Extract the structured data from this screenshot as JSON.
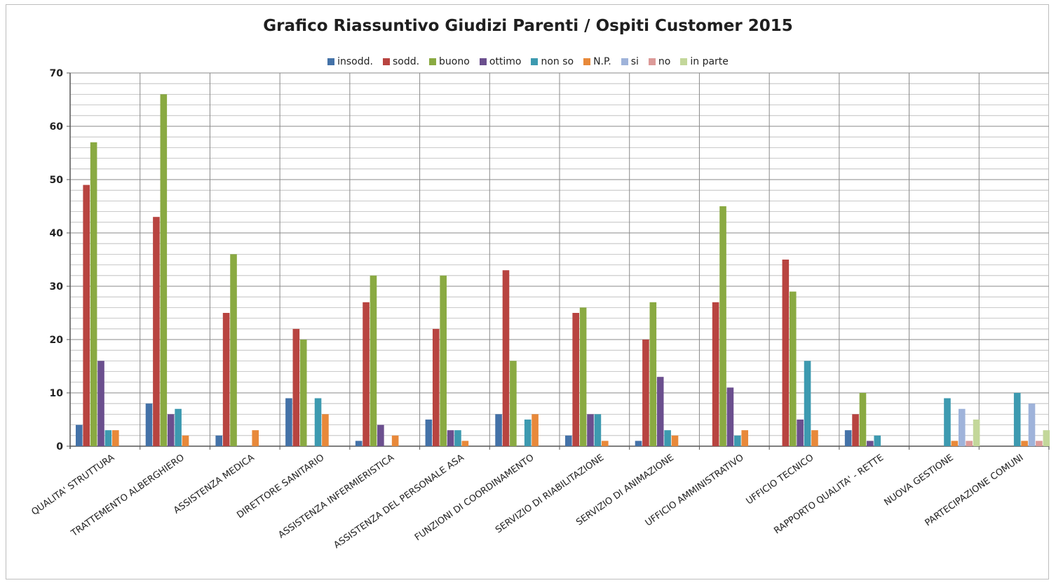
{
  "chart_data": {
    "type": "bar",
    "title": "Grafico Riassuntivo Giudizi Parenti / Ospiti Customer 2015",
    "xlabel": "",
    "ylabel": "",
    "ylim": [
      0,
      70
    ],
    "yticks": [
      0,
      10,
      20,
      30,
      40,
      50,
      60,
      70
    ],
    "grid": true,
    "legend_position": "top",
    "categories": [
      "QUALITA' STRUTTURA",
      "TRATTEMENTO ALBERGHIERO",
      "ASSISTENZA MEDICA",
      "DIRETTORE SANITARIO",
      "ASSISTENZA INFERMIERISTICA",
      "ASSISTENZA DEL PERSONALE ASA",
      "FUNZIONI DI COORDINAMENTO",
      "SERVIZIO DI RIABILITAZIONE",
      "SERVIZIO DI ANIMAZIONE",
      "UFFICIO AMMINISTRATIVO",
      "UFFICIO TECNICO",
      "RAPPORTO QUALITA' - RETTE",
      "NUOVA GESTIONE",
      "PARTECIPAZIONE COMUNI"
    ],
    "series": [
      {
        "name": "insodd.",
        "color": "#4472a8",
        "values": [
          4,
          8,
          2,
          9,
          1,
          5,
          6,
          2,
          1,
          0,
          0,
          3,
          0,
          0
        ]
      },
      {
        "name": "sodd.",
        "color": "#b84440",
        "values": [
          49,
          43,
          25,
          22,
          27,
          22,
          33,
          25,
          20,
          27,
          35,
          6,
          0,
          0
        ]
      },
      {
        "name": "buono",
        "color": "#8aaa42",
        "values": [
          57,
          66,
          36,
          20,
          32,
          32,
          16,
          26,
          27,
          45,
          29,
          10,
          0,
          0
        ]
      },
      {
        "name": "ottimo",
        "color": "#6b4f8e",
        "values": [
          16,
          6,
          0,
          0,
          4,
          3,
          0,
          6,
          13,
          11,
          5,
          1,
          0,
          0
        ]
      },
      {
        "name": "non so",
        "color": "#3d9ab0",
        "values": [
          3,
          7,
          0,
          9,
          0,
          3,
          5,
          6,
          3,
          2,
          16,
          2,
          9,
          10
        ]
      },
      {
        "name": "N.P.",
        "color": "#e8893a",
        "values": [
          3,
          2,
          3,
          6,
          2,
          1,
          6,
          1,
          2,
          3,
          3,
          0,
          1,
          1
        ]
      },
      {
        "name": "si",
        "color": "#9fb3da",
        "values": [
          0,
          0,
          0,
          0,
          0,
          0,
          0,
          0,
          0,
          0,
          0,
          0,
          7,
          8
        ]
      },
      {
        "name": "no",
        "color": "#dc9a98",
        "values": [
          0,
          0,
          0,
          0,
          0,
          0,
          0,
          0,
          0,
          0,
          0,
          0,
          1,
          1
        ]
      },
      {
        "name": "in parte",
        "color": "#c3d79a",
        "values": [
          0,
          0,
          0,
          0,
          0,
          0,
          0,
          0,
          0,
          0,
          0,
          0,
          5,
          3
        ]
      }
    ]
  }
}
